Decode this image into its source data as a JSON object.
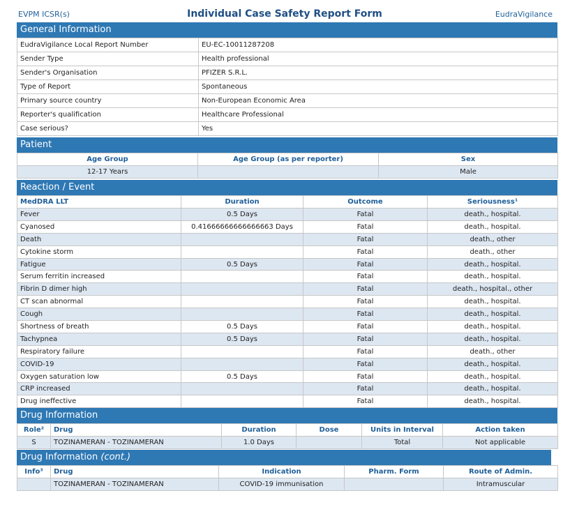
{
  "header": {
    "left": "EVPM ICSR(s)",
    "title": "Individual Case Safety Report Form",
    "right": "EudraVigilance"
  },
  "general": {
    "title": "General Information",
    "rows": [
      [
        "EudraVigilance Local Report Number",
        "EU-EC-10011287208"
      ],
      [
        "Sender Type",
        "Health professional"
      ],
      [
        "Sender's Organisation",
        "PFIZER S.R.L."
      ],
      [
        "Type of Report",
        "Spontaneous"
      ],
      [
        "Primary source country",
        "Non-European Economic Area"
      ],
      [
        "Reporter's qualification",
        "Healthcare Professional"
      ],
      [
        "Case serious?",
        "Yes"
      ]
    ]
  },
  "patient": {
    "title": "Patient",
    "headers": [
      "Age Group",
      "Age Group (as per reporter)",
      "Sex"
    ],
    "rows": [
      [
        "12-17 Years",
        null,
        "Male"
      ]
    ]
  },
  "reaction": {
    "title": "Reaction / Event",
    "headers": [
      "MedDRA LLT",
      "Duration",
      "Outcome",
      "Seriousness¹"
    ],
    "rows": [
      [
        "Fever",
        "0.5 Days",
        "Fatal",
        "death., hospital."
      ],
      [
        "Cyanosed",
        "0.41666666666666663 Days",
        "Fatal",
        "death., hospital."
      ],
      [
        "Death",
        null,
        "Fatal",
        "death., other"
      ],
      [
        "Cytokine storm",
        null,
        "Fatal",
        "death., other"
      ],
      [
        "Fatigue",
        "0.5 Days",
        "Fatal",
        "death., hospital."
      ],
      [
        "Serum ferritin increased",
        null,
        "Fatal",
        "death., hospital."
      ],
      [
        "Fibrin D dimer high",
        null,
        "Fatal",
        "death., hospital., other"
      ],
      [
        "CT scan abnormal",
        null,
        "Fatal",
        "death., hospital."
      ],
      [
        "Cough",
        null,
        "Fatal",
        "death., hospital."
      ],
      [
        "Shortness of breath",
        "0.5 Days",
        "Fatal",
        "death., hospital."
      ],
      [
        "Tachypnea",
        "0.5 Days",
        "Fatal",
        "death., hospital."
      ],
      [
        "Respiratory failure",
        null,
        "Fatal",
        "death., other"
      ],
      [
        "COVID-19",
        null,
        "Fatal",
        "death., hospital."
      ],
      [
        "Oxygen saturation low",
        "0.5 Days",
        "Fatal",
        "death., hospital."
      ],
      [
        "CRP increased",
        null,
        "Fatal",
        "death., hospital."
      ],
      [
        "Drug ineffective",
        null,
        "Fatal",
        "death., hospital."
      ]
    ]
  },
  "drug": {
    "title": "Drug Information",
    "headers": [
      "Role²",
      "Drug",
      "Duration",
      "Dose",
      "Units in Interval",
      "Action taken"
    ],
    "rows": [
      [
        "S",
        "TOZINAMERAN - TOZINAMERAN",
        "1.0 Days",
        null,
        "Total",
        "Not applicable"
      ]
    ]
  },
  "drug_cont": {
    "title": "Drug Information",
    "title_note": "(cont.)",
    "headers": [
      "Info³",
      "Drug",
      "Indication",
      "Pharm. Form",
      "Route of Admin."
    ],
    "rows": [
      [
        null,
        "TOZINAMERAN - TOZINAMERAN",
        "COVID-19 immunisation",
        null,
        "Intramuscular"
      ]
    ]
  }
}
